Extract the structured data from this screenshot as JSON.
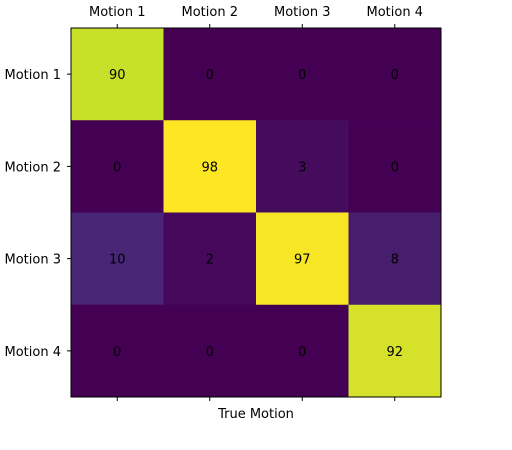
{
  "chart_data": {
    "type": "heatmap",
    "title": "",
    "xlabel": "True Motion",
    "ylabel": "",
    "x_categories": [
      "Motion 1",
      "Motion 2",
      "Motion 3",
      "Motion 4"
    ],
    "y_categories": [
      "Motion 1",
      "Motion 2",
      "Motion 3",
      "Motion 4"
    ],
    "x_tick_position": "top",
    "values": [
      [
        90,
        0,
        0,
        0
      ],
      [
        0,
        98,
        3,
        0
      ],
      [
        10,
        2,
        97,
        8
      ],
      [
        0,
        0,
        0,
        92
      ]
    ],
    "value_range": [
      0,
      98
    ],
    "colormap": "viridis",
    "grid": false,
    "annotation_color": "#000000"
  }
}
